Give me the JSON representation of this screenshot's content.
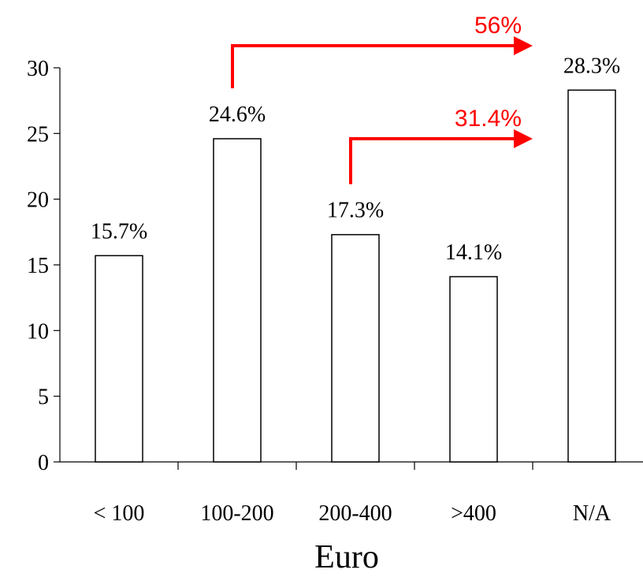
{
  "chart_data": {
    "type": "bar",
    "categories": [
      "< 100",
      "100-200",
      "200-400",
      ">400",
      "N/A"
    ],
    "values": [
      15.7,
      24.6,
      17.3,
      14.1,
      28.3
    ],
    "data_labels": [
      "15.7%",
      "24.6%",
      "17.3%",
      "14.1%",
      "28.3%"
    ],
    "title": "",
    "xlabel": "Euro",
    "ylabel": "",
    "ylim": [
      0,
      30
    ],
    "yticks": [
      0,
      5,
      10,
      15,
      20,
      25,
      30
    ],
    "grid": false,
    "legend": "none",
    "bar_fill": "#ffffff",
    "bar_stroke": "#000000",
    "annotations": [
      {
        "label": "56%",
        "from_category": "100-200",
        "to_category": "N/A",
        "color": "#ff0000"
      },
      {
        "label": "31.4%",
        "from_category": "200-400",
        "to_category": "N/A",
        "color": "#ff0000"
      }
    ]
  }
}
